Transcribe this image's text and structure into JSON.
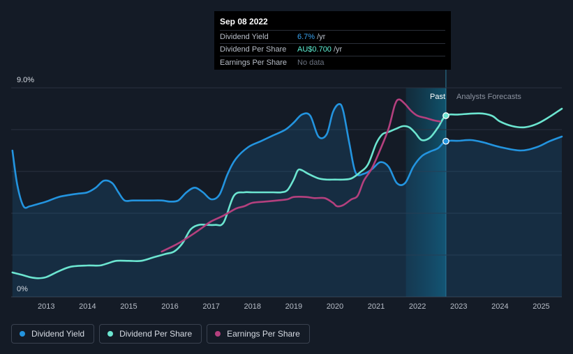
{
  "tooltip": {
    "date": "Sep 08 2022",
    "rows": [
      {
        "label": "Dividend Yield",
        "value": "6.7%",
        "unit": "/yr"
      },
      {
        "label": "Dividend Per Share",
        "value": "AU$0.700",
        "unit": "/yr"
      },
      {
        "label": "Earnings Per Share",
        "value": "No data",
        "unit": ""
      }
    ]
  },
  "legend": [
    {
      "label": "Dividend Yield",
      "color": "#2394df"
    },
    {
      "label": "Dividend Per Share",
      "color": "#6ce5d0"
    },
    {
      "label": "Earnings Per Share",
      "color": "#b4407e"
    }
  ],
  "chart_data": {
    "type": "line",
    "ylim": [
      0,
      9.0
    ],
    "y_tick_labels": [
      "9.0%",
      "0%"
    ],
    "x_tick_labels": [
      "2013",
      "2014",
      "2015",
      "2016",
      "2017",
      "2018",
      "2019",
      "2020",
      "2021",
      "2022",
      "2023",
      "2024",
      "2025"
    ],
    "xlim": [
      2012.15,
      2025.5
    ],
    "grid": true,
    "past_label": "Past",
    "forecast_label": "Analysts Forecasts",
    "past_region_start": 2021.72,
    "today": 2022.69,
    "series": [
      {
        "name": "Dividend Yield",
        "color": "#2394df",
        "area": true,
        "x": [
          2012.18,
          2012.3,
          2012.45,
          2012.6,
          2012.8,
          2013.0,
          2013.3,
          2013.6,
          2013.8,
          2014.0,
          2014.2,
          2014.4,
          2014.6,
          2014.75,
          2014.9,
          2015.1,
          2015.5,
          2015.8,
          2016.0,
          2016.2,
          2016.4,
          2016.6,
          2016.8,
          2017.0,
          2017.2,
          2017.4,
          2017.6,
          2017.9,
          2018.2,
          2018.5,
          2018.8,
          2019.0,
          2019.2,
          2019.4,
          2019.6,
          2019.8,
          2019.95,
          2020.1,
          2020.2,
          2020.35,
          2020.5,
          2020.7,
          2020.9,
          2021.1,
          2021.3,
          2021.5,
          2021.7,
          2021.9,
          2022.1,
          2022.3,
          2022.5,
          2022.69,
          2023.0,
          2023.3,
          2023.6,
          2024.0,
          2024.5,
          2024.9,
          2025.2,
          2025.5
        ],
        "y": [
          6.3,
          4.8,
          3.9,
          3.9,
          4.0,
          4.1,
          4.3,
          4.4,
          4.45,
          4.5,
          4.7,
          5.0,
          4.9,
          4.5,
          4.15,
          4.15,
          4.15,
          4.15,
          4.1,
          4.15,
          4.5,
          4.7,
          4.5,
          4.2,
          4.4,
          5.3,
          5.95,
          6.45,
          6.7,
          6.95,
          7.2,
          7.5,
          7.85,
          7.8,
          6.9,
          7.0,
          7.95,
          8.3,
          8.0,
          6.6,
          5.35,
          5.3,
          5.5,
          5.8,
          5.6,
          4.9,
          4.9,
          5.6,
          6.05,
          6.25,
          6.4,
          6.7,
          6.72,
          6.75,
          6.65,
          6.45,
          6.3,
          6.45,
          6.7,
          6.9
        ]
      },
      {
        "name": "Dividend Per Share",
        "color": "#6ce5d0",
        "area": false,
        "x": [
          2012.18,
          2012.4,
          2012.6,
          2012.8,
          2013.0,
          2013.3,
          2013.6,
          2014.0,
          2014.3,
          2014.5,
          2014.7,
          2015.0,
          2015.3,
          2015.6,
          2015.9,
          2016.1,
          2016.3,
          2016.5,
          2016.7,
          2016.9,
          2017.1,
          2017.3,
          2017.55,
          2017.8,
          2018.0,
          2018.5,
          2018.7,
          2018.85,
          2019.0,
          2019.1,
          2019.2,
          2019.35,
          2019.6,
          2019.8,
          2020.0,
          2020.2,
          2020.4,
          2020.6,
          2020.8,
          2021.0,
          2021.15,
          2021.3,
          2021.5,
          2021.65,
          2021.8,
          2021.95,
          2022.1,
          2022.3,
          2022.5,
          2022.69,
          2023.0,
          2023.5,
          2023.8,
          2024.0,
          2024.3,
          2024.6,
          2024.9,
          2025.2,
          2025.5
        ],
        "y": [
          1.05,
          0.95,
          0.85,
          0.8,
          0.85,
          1.1,
          1.3,
          1.35,
          1.35,
          1.45,
          1.55,
          1.55,
          1.55,
          1.7,
          1.85,
          1.95,
          2.3,
          2.9,
          3.1,
          3.1,
          3.1,
          3.2,
          4.35,
          4.5,
          4.5,
          4.5,
          4.5,
          4.6,
          5.05,
          5.45,
          5.45,
          5.3,
          5.1,
          5.05,
          5.05,
          5.05,
          5.1,
          5.35,
          5.7,
          6.6,
          7.0,
          7.1,
          7.25,
          7.35,
          7.3,
          7.05,
          6.75,
          6.85,
          7.3,
          7.8,
          7.85,
          7.9,
          7.8,
          7.55,
          7.35,
          7.3,
          7.45,
          7.75,
          8.1
        ]
      },
      {
        "name": "Earnings Per Share",
        "color": "#b4407e",
        "area": false,
        "x": [
          2015.8,
          2016.2,
          2016.6,
          2016.8,
          2017.0,
          2017.3,
          2017.6,
          2017.8,
          2018.0,
          2018.3,
          2018.6,
          2018.85,
          2019.0,
          2019.3,
          2019.5,
          2019.75,
          2019.95,
          2020.05,
          2020.2,
          2020.4,
          2020.55,
          2020.7,
          2020.9,
          2021.1,
          2021.3,
          2021.45,
          2021.55,
          2021.7,
          2021.85,
          2022.0,
          2022.2,
          2022.4,
          2022.55
        ],
        "y": [
          1.95,
          2.3,
          2.75,
          3.0,
          3.25,
          3.5,
          3.8,
          3.9,
          4.05,
          4.1,
          4.15,
          4.2,
          4.3,
          4.3,
          4.25,
          4.25,
          4.05,
          3.9,
          3.95,
          4.2,
          4.35,
          5.0,
          5.55,
          6.35,
          7.25,
          8.25,
          8.5,
          8.3,
          8.0,
          7.8,
          7.7,
          7.6,
          7.55
        ]
      }
    ]
  }
}
